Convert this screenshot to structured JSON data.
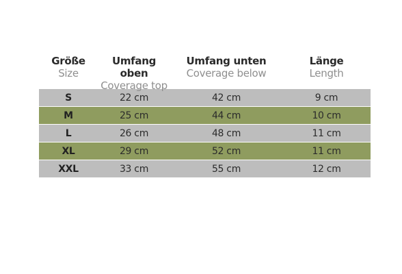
{
  "header": {
    "size_de": "Größe",
    "size_en": "Size",
    "top_de": "Umfang oben",
    "top_en": "Coverage top",
    "below_de": "Umfang unten",
    "below_en": "Coverage below",
    "length_de": "Länge",
    "length_en": "Length"
  },
  "rows": [
    {
      "size": "S",
      "top": "22 cm",
      "below": "42 cm",
      "length": "9 cm"
    },
    {
      "size": "M",
      "top": "25 cm",
      "below": "44 cm",
      "length": "10 cm"
    },
    {
      "size": "L",
      "top": "26 cm",
      "below": "48 cm",
      "length": "11 cm"
    },
    {
      "size": "XL",
      "top": "29 cm",
      "below": "52 cm",
      "length": "11 cm"
    },
    {
      "size": "XXL",
      "top": "33 cm",
      "below": "55 cm",
      "length": "12 cm"
    }
  ],
  "colors": {
    "row_gray": "#bdbdbd",
    "row_green": "#8f9c5f"
  }
}
